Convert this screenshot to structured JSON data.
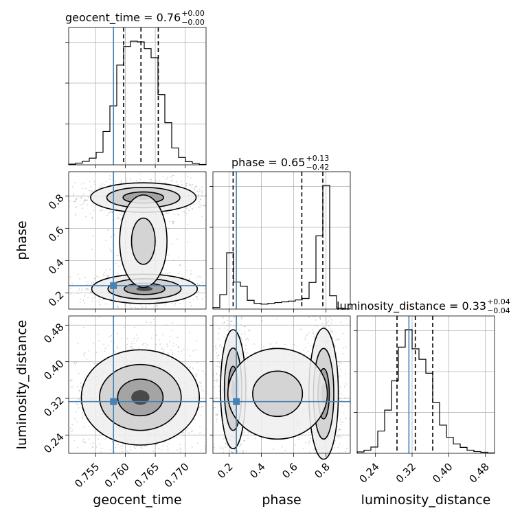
{
  "chart_data": {
    "type": "corner",
    "parameters": [
      "geocent_time",
      "phase",
      "luminosity_distance"
    ],
    "axis_labels": [
      "geocent_time",
      "phase",
      "luminosity_distance"
    ],
    "ranges": [
      [
        0.7505,
        0.7735
      ],
      [
        0.1,
        0.95
      ],
      [
        0.2,
        0.5
      ]
    ],
    "ticks": {
      "geocent_time": [
        0.755,
        0.76,
        0.765,
        0.77
      ],
      "phase": [
        0.2,
        0.4,
        0.6,
        0.8
      ],
      "luminosity_distance": [
        0.24,
        0.32,
        0.4,
        0.48
      ]
    },
    "tick_labels": {
      "geocent_time": [
        "0.755",
        "0.760",
        "0.765",
        "0.770"
      ],
      "phase": [
        "0.2",
        "0.4",
        "0.6",
        "0.8"
      ],
      "luminosity_distance": [
        "0.24",
        "0.32",
        "0.40",
        "0.48"
      ]
    },
    "truths": {
      "geocent_time": 0.758,
      "phase": 0.245,
      "luminosity_distance": 0.313
    },
    "truth_color": "#4682b4",
    "titles": [
      {
        "param": "geocent_time",
        "label": "geocent_time = 0.76",
        "plus": "+0.00",
        "minus": "−0.00"
      },
      {
        "param": "phase",
        "label": "phase = 0.65",
        "plus": "+0.13",
        "minus": "−0.42"
      },
      {
        "param": "luminosity_distance",
        "label": "luminosity_distance = 0.33",
        "plus": "+0.04",
        "minus": "−0.04"
      }
    ],
    "quantiles": {
      "geocent_time": [
        0.7597,
        0.7626,
        0.7655
      ],
      "phase": [
        0.225,
        0.65,
        0.78
      ],
      "luminosity_distance": [
        0.287,
        0.327,
        0.365
      ]
    },
    "histograms": {
      "geocent_time": {
        "edges": [
          0.7505,
          0.75165,
          0.7528,
          0.75395,
          0.7551,
          0.75625,
          0.7574,
          0.75855,
          0.7597,
          0.76085,
          0.762,
          0.76315,
          0.7643,
          0.76545,
          0.7666,
          0.76775,
          0.7689,
          0.77005,
          0.7712,
          0.77235,
          0.7735
        ],
        "counts": [
          2,
          5,
          10,
          19,
          36,
          95,
          168,
          284,
          337,
          352,
          350,
          331,
          305,
          200,
          120,
          48,
          21,
          9,
          4,
          1
        ]
      },
      "phase": {
        "edges": [
          0.1,
          0.1425,
          0.185,
          0.2275,
          0.27,
          0.3125,
          0.355,
          0.3975,
          0.44,
          0.4825,
          0.525,
          0.5675,
          0.61,
          0.6525,
          0.695,
          0.7375,
          0.78,
          0.8225,
          0.865,
          0.9075,
          0.95
        ],
        "counts": [
          8,
          76,
          296,
          142,
          120,
          46,
          30,
          26,
          30,
          34,
          38,
          42,
          48,
          56,
          140,
          385,
          650,
          70,
          5,
          1
        ]
      },
      "luminosity_distance": {
        "edges": [
          0.2,
          0.215,
          0.23,
          0.245,
          0.26,
          0.275,
          0.29,
          0.305,
          0.32,
          0.335,
          0.35,
          0.365,
          0.38,
          0.395,
          0.41,
          0.425,
          0.44,
          0.455,
          0.47,
          0.485,
          0.5
        ],
        "counts": [
          4,
          9,
          18,
          64,
          124,
          208,
          305,
          355,
          300,
          270,
          230,
          146,
          81,
          46,
          27,
          17,
          9,
          5,
          3,
          1
        ]
      }
    },
    "grid": true
  }
}
